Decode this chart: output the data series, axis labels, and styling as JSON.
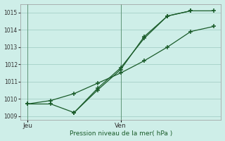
{
  "background_color": "#ceeee8",
  "grid_color": "#aad4cc",
  "line_color": "#1a5c2a",
  "title": "Pression niveau de la mer( hPa )",
  "ylim": [
    1008.8,
    1015.5
  ],
  "yticks": [
    1009,
    1010,
    1011,
    1012,
    1013,
    1014,
    1015
  ],
  "xtick_positions": [
    0,
    4
  ],
  "xtick_labels": [
    "Jeu",
    "Ven"
  ],
  "xlim": [
    -0.3,
    8.3
  ],
  "vline_x": [
    0,
    4
  ],
  "series1_x": [
    0,
    1,
    2,
    3,
    4,
    5,
    6,
    7
  ],
  "series1_y": [
    1009.7,
    1009.7,
    1009.2,
    1010.6,
    1011.8,
    1013.5,
    1014.8,
    1015.1
  ],
  "series2_x": [
    2,
    3,
    4,
    5,
    6,
    7,
    8
  ],
  "series2_y": [
    1009.2,
    1010.5,
    1011.7,
    1013.6,
    1014.8,
    1015.1,
    1015.1
  ],
  "series3_x": [
    0,
    1,
    2,
    3,
    4,
    5,
    6,
    7,
    8
  ],
  "series3_y": [
    1009.7,
    1009.9,
    1010.3,
    1010.9,
    1011.5,
    1012.2,
    1013.0,
    1013.9,
    1014.2
  ]
}
